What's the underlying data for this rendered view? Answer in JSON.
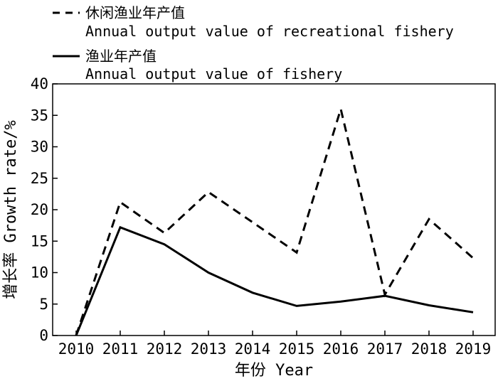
{
  "chart_data": {
    "type": "line",
    "x": [
      2010,
      2011,
      2012,
      2013,
      2014,
      2015,
      2016,
      2017,
      2018,
      2019
    ],
    "series": [
      {
        "name_cn": "休闲渔业年产值",
        "name_en": "Annual output value of recreational fishery",
        "values": [
          0,
          21.2,
          16.3,
          22.8,
          18.0,
          13.2,
          36.0,
          6.5,
          18.5,
          12.3
        ],
        "style": "dashed",
        "color": "#000000"
      },
      {
        "name_cn": "渔业年产值",
        "name_en": "Annual output value of fishery",
        "values": [
          0,
          17.2,
          14.5,
          10.0,
          6.8,
          4.7,
          5.4,
          6.3,
          4.8,
          3.7
        ],
        "style": "solid",
        "color": "#000000"
      }
    ],
    "xlabel": "年份 Year",
    "ylabel": "增长率 Growth rate/%",
    "ylim": [
      0,
      40
    ],
    "yticks": [
      0,
      5,
      10,
      15,
      20,
      25,
      30,
      35,
      40
    ],
    "grid": false,
    "legend_position": "top-left"
  }
}
